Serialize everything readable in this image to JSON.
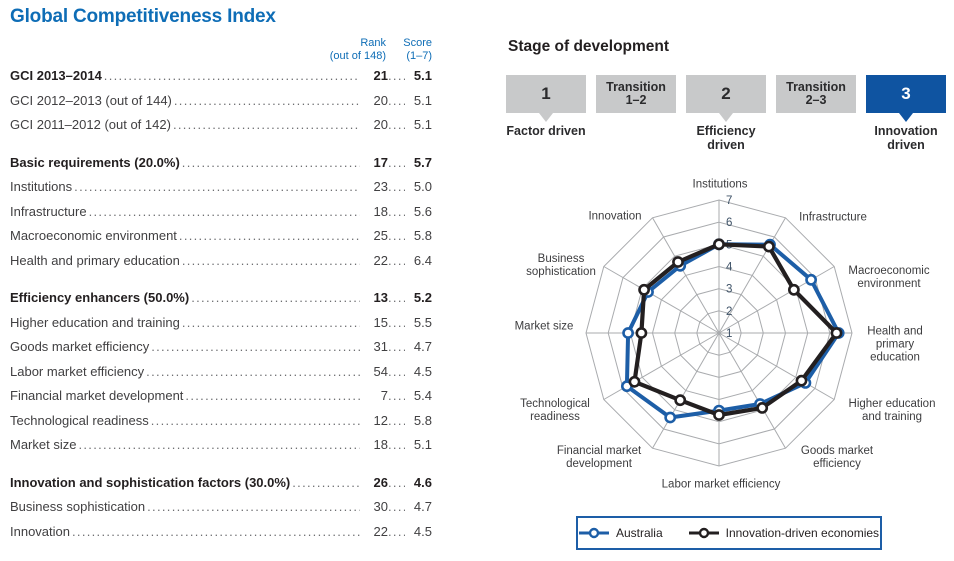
{
  "table": {
    "title": "Global Competitiveness Index",
    "col_headers": {
      "rank_line1": "Rank",
      "rank_line2": "(out of 148)",
      "score_line1": "Score",
      "score_line2": "(1–7)"
    },
    "groups": [
      {
        "rows": [
          {
            "label": "GCI 2013–2014",
            "rank": "21",
            "score": "5.1",
            "bold": true
          },
          {
            "label": "GCI 2012–2013 (out of 144)",
            "rank": "20",
            "score": "5.1",
            "bold": false
          },
          {
            "label": "GCI 2011–2012 (out of 142)",
            "rank": "20",
            "score": "5.1",
            "bold": false
          }
        ]
      },
      {
        "rows": [
          {
            "label": "Basic requirements (20.0%)",
            "rank": "17",
            "score": "5.7",
            "bold": true
          },
          {
            "label": "Institutions",
            "rank": "23",
            "score": "5.0",
            "bold": false
          },
          {
            "label": "Infrastructure",
            "rank": "18",
            "score": "5.6",
            "bold": false
          },
          {
            "label": "Macroeconomic environment",
            "rank": "25",
            "score": "5.8",
            "bold": false
          },
          {
            "label": "Health and primary education",
            "rank": "22",
            "score": "6.4",
            "bold": false
          }
        ]
      },
      {
        "rows": [
          {
            "label": "Efficiency enhancers (50.0%)",
            "rank": "13",
            "score": "5.2",
            "bold": true
          },
          {
            "label": "Higher education and training",
            "rank": "15",
            "score": "5.5",
            "bold": false
          },
          {
            "label": "Goods market efficiency",
            "rank": "31",
            "score": "4.7",
            "bold": false
          },
          {
            "label": "Labor market efficiency",
            "rank": "54",
            "score": "4.5",
            "bold": false
          },
          {
            "label": "Financial market development",
            "rank": "7",
            "score": "5.4",
            "bold": false
          },
          {
            "label": "Technological readiness",
            "rank": "12",
            "score": "5.8",
            "bold": false
          },
          {
            "label": "Market size",
            "rank": "18",
            "score": "5.1",
            "bold": false
          }
        ]
      },
      {
        "rows": [
          {
            "label": "Innovation and sophistication factors (30.0%)",
            "rank": "26",
            "score": "4.6",
            "bold": true
          },
          {
            "label": "Business sophistication",
            "rank": "30",
            "score": "4.7",
            "bold": false
          },
          {
            "label": "Innovation",
            "rank": "22",
            "score": "4.5",
            "bold": false
          }
        ]
      }
    ]
  },
  "stage": {
    "title": "Stage of development",
    "boxes": [
      {
        "label": "1",
        "number": true,
        "active": false,
        "pointer": true,
        "caption": "Factor driven"
      },
      {
        "label": "Transition 1–2",
        "number": false,
        "active": false,
        "pointer": false,
        "caption": ""
      },
      {
        "label": "2",
        "number": true,
        "active": false,
        "pointer": true,
        "caption": "Efficiency driven"
      },
      {
        "label": "Transition 2–3",
        "number": false,
        "active": false,
        "pointer": false,
        "caption": ""
      },
      {
        "label": "3",
        "number": true,
        "active": true,
        "pointer": true,
        "caption": "Innovation driven"
      }
    ]
  },
  "chart_data": {
    "type": "radar",
    "title": "",
    "categories": [
      "Institutions",
      "Infrastructure",
      "Macroeconomic environment",
      "Health and primary education",
      "Higher education and training",
      "Goods market efficiency",
      "Labor market efficiency",
      "Financial market development",
      "Technological readiness",
      "Market size",
      "Business sophistication",
      "Innovation"
    ],
    "series": [
      {
        "name": "Australia",
        "color": "#1d5ea7",
        "values": [
          5.0,
          5.6,
          5.8,
          6.4,
          5.5,
          4.7,
          4.5,
          5.4,
          5.8,
          5.1,
          4.7,
          4.5
        ]
      },
      {
        "name": "Innovation-driven economies",
        "color": "#231f20",
        "values": [
          5.0,
          5.5,
          4.9,
          6.3,
          5.3,
          4.9,
          4.7,
          4.5,
          5.4,
          4.5,
          4.9,
          4.7
        ]
      }
    ],
    "scale": {
      "min": 1,
      "max": 7,
      "ticks": [
        1,
        2,
        3,
        4,
        5,
        6,
        7
      ]
    },
    "grid": "polygon-web",
    "legend_position": "bottom"
  },
  "colors": {
    "accent_blue": "#0e6db6",
    "active_stage_blue": "#0f54a1",
    "stage_gray": "#c8c9ca",
    "web_gray": "#a9abae",
    "tick_color": "#3d5166",
    "series_blue": "#1d5ea7",
    "series_black": "#231f20"
  }
}
